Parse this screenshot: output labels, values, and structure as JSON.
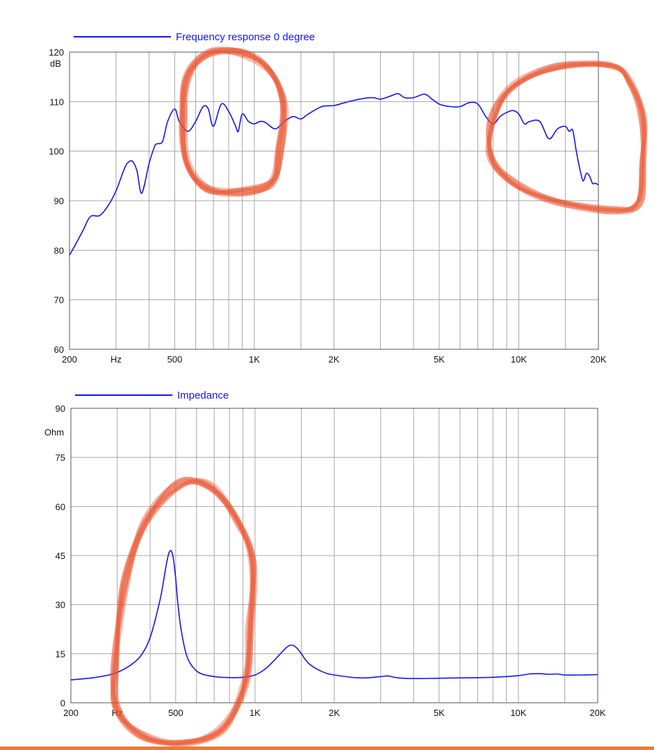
{
  "colors": {
    "series": "#1515e8",
    "grid": "#a7a7a7",
    "axis": "#555555",
    "annotation": "#e8502a",
    "bottom_bar": "#f07a35"
  },
  "chart_data": [
    {
      "type": "line",
      "x_scale": "log",
      "xlim": [
        200,
        20000
      ],
      "ylim": [
        60,
        120
      ],
      "y_ticks": [
        60,
        70,
        80,
        90,
        100,
        110,
        120
      ],
      "y_unit": "dB",
      "x_tick_labels": [
        {
          "x": 200,
          "label": "200"
        },
        {
          "x": 300,
          "label": "Hz"
        },
        {
          "x": 500,
          "label": "500"
        },
        {
          "x": 1000,
          "label": "1K"
        },
        {
          "x": 2000,
          "label": "2K"
        },
        {
          "x": 5000,
          "label": "5K"
        },
        {
          "x": 10000,
          "label": "10K"
        },
        {
          "x": 20000,
          "label": "20K"
        }
      ],
      "x_gridlines": [
        300,
        400,
        500,
        600,
        700,
        800,
        900,
        1000,
        1500,
        2000,
        3000,
        4000,
        5000,
        6000,
        7000,
        8000,
        9000,
        10000,
        15000,
        20000
      ],
      "grid": true,
      "legend_position": "top-left",
      "series": [
        {
          "name": "Frequency response 0 degree",
          "x": [
            200,
            210,
            225,
            240,
            260,
            280,
            300,
            320,
            330,
            345,
            360,
            375,
            400,
            420,
            430,
            450,
            470,
            500,
            520,
            560,
            600,
            640,
            670,
            700,
            750,
            800,
            850,
            870,
            900,
            950,
            1000,
            1050,
            1100,
            1200,
            1300,
            1400,
            1500,
            1600,
            1800,
            2000,
            2200,
            2500,
            2800,
            3000,
            3300,
            3500,
            3700,
            4000,
            4400,
            4700,
            5000,
            5500,
            6000,
            6500,
            7000,
            7500,
            8000,
            8500,
            9000,
            9500,
            10000,
            10500,
            11000,
            12000,
            13000,
            14000,
            15000,
            15500,
            16000,
            16500,
            17000,
            17500,
            18000,
            18500,
            19000,
            19500,
            20000
          ],
          "values": [
            79,
            81,
            84,
            86.8,
            87,
            89,
            92,
            96,
            97.5,
            98,
            96,
            91.5,
            97.5,
            101,
            101.5,
            102,
            106,
            108.5,
            106,
            104,
            106,
            109,
            108.5,
            105,
            109.5,
            108,
            105,
            104,
            107.5,
            106,
            105.5,
            106,
            105.8,
            104.5,
            106,
            107,
            106.5,
            107.5,
            109,
            109.2,
            109.8,
            110.5,
            110.8,
            110.5,
            111.2,
            111.6,
            110.8,
            110.8,
            111.5,
            110.5,
            109.5,
            109,
            109,
            109.8,
            109.5,
            107,
            105.5,
            107,
            107.8,
            108.2,
            107.5,
            105.5,
            106,
            106,
            102.5,
            104.5,
            105,
            104,
            104.2,
            100,
            96.5,
            94,
            95.5,
            95,
            93.5,
            93.5,
            93.2
          ]
        }
      ]
    },
    {
      "type": "line",
      "x_scale": "log",
      "xlim": [
        200,
        20000
      ],
      "ylim": [
        0,
        90
      ],
      "y_ticks": [
        0,
        15,
        30,
        45,
        60,
        75,
        90
      ],
      "y_unit": "Ohm",
      "x_tick_labels": [
        {
          "x": 200,
          "label": "200"
        },
        {
          "x": 300,
          "label": "Hz"
        },
        {
          "x": 500,
          "label": "500"
        },
        {
          "x": 1000,
          "label": "1K"
        },
        {
          "x": 2000,
          "label": "2K"
        },
        {
          "x": 5000,
          "label": "5K"
        },
        {
          "x": 10000,
          "label": "10K"
        },
        {
          "x": 20000,
          "label": "20K"
        }
      ],
      "x_gridlines": [
        300,
        400,
        500,
        600,
        700,
        800,
        900,
        1000,
        1500,
        2000,
        3000,
        4000,
        5000,
        6000,
        7000,
        8000,
        9000,
        10000,
        15000,
        20000
      ],
      "grid": true,
      "legend_position": "top-left",
      "series": [
        {
          "name": "Impedance",
          "x": [
            200,
            250,
            300,
            350,
            380,
            400,
            420,
            440,
            460,
            470,
            480,
            490,
            500,
            510,
            525,
            550,
            580,
            620,
            700,
            800,
            900,
            1000,
            1100,
            1200,
            1300,
            1350,
            1400,
            1450,
            1500,
            1600,
            1800,
            2000,
            2500,
            3000,
            3200,
            3500,
            4000,
            5000,
            6000,
            8000,
            10000,
            11000,
            12000,
            13000,
            14000,
            15000,
            17000,
            20000
          ],
          "values": [
            7,
            7.8,
            9.3,
            12.5,
            16,
            20,
            26,
            33,
            42,
            45.5,
            46.5,
            44,
            38,
            30,
            22,
            14.5,
            11,
            9,
            8,
            7.7,
            7.8,
            8.5,
            10.5,
            13.5,
            16.5,
            17.5,
            17.5,
            16.5,
            15,
            12,
            9.5,
            8.5,
            7.6,
            8,
            8.2,
            7.6,
            7.4,
            7.5,
            7.6,
            7.8,
            8.3,
            8.8,
            8.9,
            8.7,
            8.8,
            8.5,
            8.5,
            8.6
          ]
        }
      ]
    }
  ]
}
